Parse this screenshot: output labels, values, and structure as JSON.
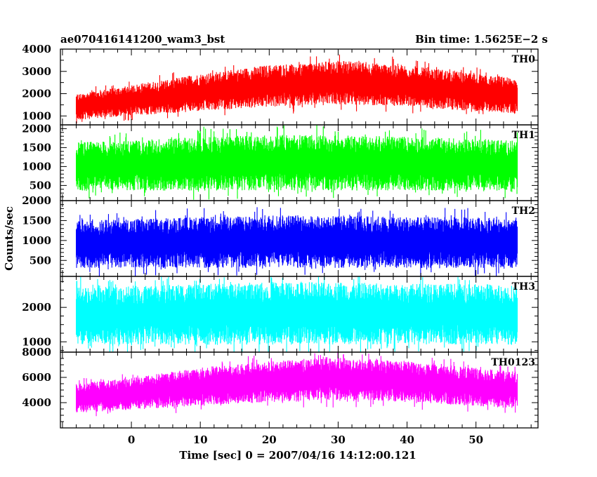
{
  "header": {
    "title": "ae070416141200_wam3_bst",
    "bin_time": "Bin time: 1.5625E−2 s"
  },
  "chart_data": {
    "type": "line",
    "xlabel": "Time [sec] 0 = 2007/04/16 14:12:00.121",
    "ylabel": "Counts/sec",
    "xlim": [
      -10.3,
      59
    ],
    "x_ticks": [
      0,
      10,
      20,
      30,
      40,
      50
    ],
    "data_range": [
      -8,
      56
    ],
    "bin_time_s": 0.015625,
    "panels": [
      {
        "name": "TH0",
        "color": "#ff0000",
        "ylim": [
          600,
          4000
        ],
        "y_ticks": [
          1000,
          2000,
          3000,
          4000
        ],
        "trend_x": [
          -8,
          0,
          10,
          20,
          30,
          40,
          50,
          56
        ],
        "trend_hi": [
          2000,
          2400,
          2900,
          3300,
          3500,
          3300,
          2900,
          2700
        ],
        "trend_lo": [
          800,
          1000,
          1200,
          1400,
          1500,
          1400,
          1200,
          1100
        ]
      },
      {
        "name": "TH1",
        "color": "#00ff00",
        "ylim": [
          100,
          2100
        ],
        "y_ticks": [
          500,
          1000,
          1500,
          2000
        ],
        "trend_x": [
          -8,
          0,
          10,
          20,
          30,
          40,
          50,
          56
        ],
        "trend_hi": [
          1650,
          1700,
          1800,
          1850,
          1850,
          1800,
          1750,
          1700
        ],
        "trend_lo": [
          350,
          350,
          350,
          350,
          350,
          350,
          350,
          350
        ]
      },
      {
        "name": "TH2",
        "color": "#0000ff",
        "ylim": [
          100,
          2000
        ],
        "y_ticks": [
          500,
          1000,
          1500,
          2000
        ],
        "trend_x": [
          -8,
          0,
          10,
          20,
          30,
          40,
          50,
          56
        ],
        "trend_hi": [
          1500,
          1550,
          1600,
          1650,
          1650,
          1600,
          1600,
          1550
        ],
        "trend_lo": [
          300,
          300,
          300,
          300,
          300,
          300,
          300,
          300
        ]
      },
      {
        "name": "TH3",
        "color": "#00ffff",
        "ylim": [
          700,
          2900
        ],
        "y_ticks": [
          1000,
          2000
        ],
        "trend_x": [
          -8,
          0,
          10,
          20,
          30,
          40,
          50,
          56
        ],
        "trend_hi": [
          2600,
          2650,
          2700,
          2750,
          2750,
          2700,
          2700,
          2650
        ],
        "trend_lo": [
          900,
          900,
          900,
          900,
          900,
          900,
          900,
          900
        ]
      },
      {
        "name": "TH0123",
        "color": "#ff00ff",
        "ylim": [
          2000,
          8000
        ],
        "y_ticks": [
          4000,
          6000,
          8000
        ],
        "trend_x": [
          -8,
          0,
          10,
          20,
          30,
          40,
          50,
          56
        ],
        "trend_hi": [
          5500,
          6000,
          6800,
          7300,
          7600,
          7300,
          6800,
          6500
        ],
        "trend_lo": [
          3200,
          3400,
          3700,
          4000,
          4200,
          4000,
          3700,
          3500
        ]
      }
    ]
  }
}
